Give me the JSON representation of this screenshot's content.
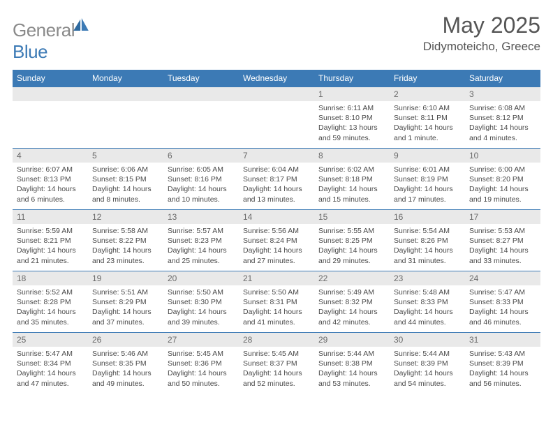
{
  "brand": {
    "part1": "General",
    "part2": "Blue"
  },
  "title": "May 2025",
  "location": "Didymoteicho, Greece",
  "colors": {
    "accent": "#3c7ab5",
    "muted_text": "#6a6a6a",
    "header_grey": "#e9e9e9"
  },
  "daynames": [
    "Sunday",
    "Monday",
    "Tuesday",
    "Wednesday",
    "Thursday",
    "Friday",
    "Saturday"
  ],
  "weeks": [
    {
      "nums": [
        "",
        "",
        "",
        "",
        "1",
        "2",
        "3"
      ],
      "cells": [
        null,
        null,
        null,
        null,
        {
          "sunrise": "Sunrise: 6:11 AM",
          "sunset": "Sunset: 8:10 PM",
          "day1": "Daylight: 13 hours",
          "day2": "and 59 minutes."
        },
        {
          "sunrise": "Sunrise: 6:10 AM",
          "sunset": "Sunset: 8:11 PM",
          "day1": "Daylight: 14 hours",
          "day2": "and 1 minute."
        },
        {
          "sunrise": "Sunrise: 6:08 AM",
          "sunset": "Sunset: 8:12 PM",
          "day1": "Daylight: 14 hours",
          "day2": "and 4 minutes."
        }
      ]
    },
    {
      "nums": [
        "4",
        "5",
        "6",
        "7",
        "8",
        "9",
        "10"
      ],
      "cells": [
        {
          "sunrise": "Sunrise: 6:07 AM",
          "sunset": "Sunset: 8:13 PM",
          "day1": "Daylight: 14 hours",
          "day2": "and 6 minutes."
        },
        {
          "sunrise": "Sunrise: 6:06 AM",
          "sunset": "Sunset: 8:15 PM",
          "day1": "Daylight: 14 hours",
          "day2": "and 8 minutes."
        },
        {
          "sunrise": "Sunrise: 6:05 AM",
          "sunset": "Sunset: 8:16 PM",
          "day1": "Daylight: 14 hours",
          "day2": "and 10 minutes."
        },
        {
          "sunrise": "Sunrise: 6:04 AM",
          "sunset": "Sunset: 8:17 PM",
          "day1": "Daylight: 14 hours",
          "day2": "and 13 minutes."
        },
        {
          "sunrise": "Sunrise: 6:02 AM",
          "sunset": "Sunset: 8:18 PM",
          "day1": "Daylight: 14 hours",
          "day2": "and 15 minutes."
        },
        {
          "sunrise": "Sunrise: 6:01 AM",
          "sunset": "Sunset: 8:19 PM",
          "day1": "Daylight: 14 hours",
          "day2": "and 17 minutes."
        },
        {
          "sunrise": "Sunrise: 6:00 AM",
          "sunset": "Sunset: 8:20 PM",
          "day1": "Daylight: 14 hours",
          "day2": "and 19 minutes."
        }
      ]
    },
    {
      "nums": [
        "11",
        "12",
        "13",
        "14",
        "15",
        "16",
        "17"
      ],
      "cells": [
        {
          "sunrise": "Sunrise: 5:59 AM",
          "sunset": "Sunset: 8:21 PM",
          "day1": "Daylight: 14 hours",
          "day2": "and 21 minutes."
        },
        {
          "sunrise": "Sunrise: 5:58 AM",
          "sunset": "Sunset: 8:22 PM",
          "day1": "Daylight: 14 hours",
          "day2": "and 23 minutes."
        },
        {
          "sunrise": "Sunrise: 5:57 AM",
          "sunset": "Sunset: 8:23 PM",
          "day1": "Daylight: 14 hours",
          "day2": "and 25 minutes."
        },
        {
          "sunrise": "Sunrise: 5:56 AM",
          "sunset": "Sunset: 8:24 PM",
          "day1": "Daylight: 14 hours",
          "day2": "and 27 minutes."
        },
        {
          "sunrise": "Sunrise: 5:55 AM",
          "sunset": "Sunset: 8:25 PM",
          "day1": "Daylight: 14 hours",
          "day2": "and 29 minutes."
        },
        {
          "sunrise": "Sunrise: 5:54 AM",
          "sunset": "Sunset: 8:26 PM",
          "day1": "Daylight: 14 hours",
          "day2": "and 31 minutes."
        },
        {
          "sunrise": "Sunrise: 5:53 AM",
          "sunset": "Sunset: 8:27 PM",
          "day1": "Daylight: 14 hours",
          "day2": "and 33 minutes."
        }
      ]
    },
    {
      "nums": [
        "18",
        "19",
        "20",
        "21",
        "22",
        "23",
        "24"
      ],
      "cells": [
        {
          "sunrise": "Sunrise: 5:52 AM",
          "sunset": "Sunset: 8:28 PM",
          "day1": "Daylight: 14 hours",
          "day2": "and 35 minutes."
        },
        {
          "sunrise": "Sunrise: 5:51 AM",
          "sunset": "Sunset: 8:29 PM",
          "day1": "Daylight: 14 hours",
          "day2": "and 37 minutes."
        },
        {
          "sunrise": "Sunrise: 5:50 AM",
          "sunset": "Sunset: 8:30 PM",
          "day1": "Daylight: 14 hours",
          "day2": "and 39 minutes."
        },
        {
          "sunrise": "Sunrise: 5:50 AM",
          "sunset": "Sunset: 8:31 PM",
          "day1": "Daylight: 14 hours",
          "day2": "and 41 minutes."
        },
        {
          "sunrise": "Sunrise: 5:49 AM",
          "sunset": "Sunset: 8:32 PM",
          "day1": "Daylight: 14 hours",
          "day2": "and 42 minutes."
        },
        {
          "sunrise": "Sunrise: 5:48 AM",
          "sunset": "Sunset: 8:33 PM",
          "day1": "Daylight: 14 hours",
          "day2": "and 44 minutes."
        },
        {
          "sunrise": "Sunrise: 5:47 AM",
          "sunset": "Sunset: 8:33 PM",
          "day1": "Daylight: 14 hours",
          "day2": "and 46 minutes."
        }
      ]
    },
    {
      "nums": [
        "25",
        "26",
        "27",
        "28",
        "29",
        "30",
        "31"
      ],
      "cells": [
        {
          "sunrise": "Sunrise: 5:47 AM",
          "sunset": "Sunset: 8:34 PM",
          "day1": "Daylight: 14 hours",
          "day2": "and 47 minutes."
        },
        {
          "sunrise": "Sunrise: 5:46 AM",
          "sunset": "Sunset: 8:35 PM",
          "day1": "Daylight: 14 hours",
          "day2": "and 49 minutes."
        },
        {
          "sunrise": "Sunrise: 5:45 AM",
          "sunset": "Sunset: 8:36 PM",
          "day1": "Daylight: 14 hours",
          "day2": "and 50 minutes."
        },
        {
          "sunrise": "Sunrise: 5:45 AM",
          "sunset": "Sunset: 8:37 PM",
          "day1": "Daylight: 14 hours",
          "day2": "and 52 minutes."
        },
        {
          "sunrise": "Sunrise: 5:44 AM",
          "sunset": "Sunset: 8:38 PM",
          "day1": "Daylight: 14 hours",
          "day2": "and 53 minutes."
        },
        {
          "sunrise": "Sunrise: 5:44 AM",
          "sunset": "Sunset: 8:39 PM",
          "day1": "Daylight: 14 hours",
          "day2": "and 54 minutes."
        },
        {
          "sunrise": "Sunrise: 5:43 AM",
          "sunset": "Sunset: 8:39 PM",
          "day1": "Daylight: 14 hours",
          "day2": "and 56 minutes."
        }
      ]
    }
  ]
}
